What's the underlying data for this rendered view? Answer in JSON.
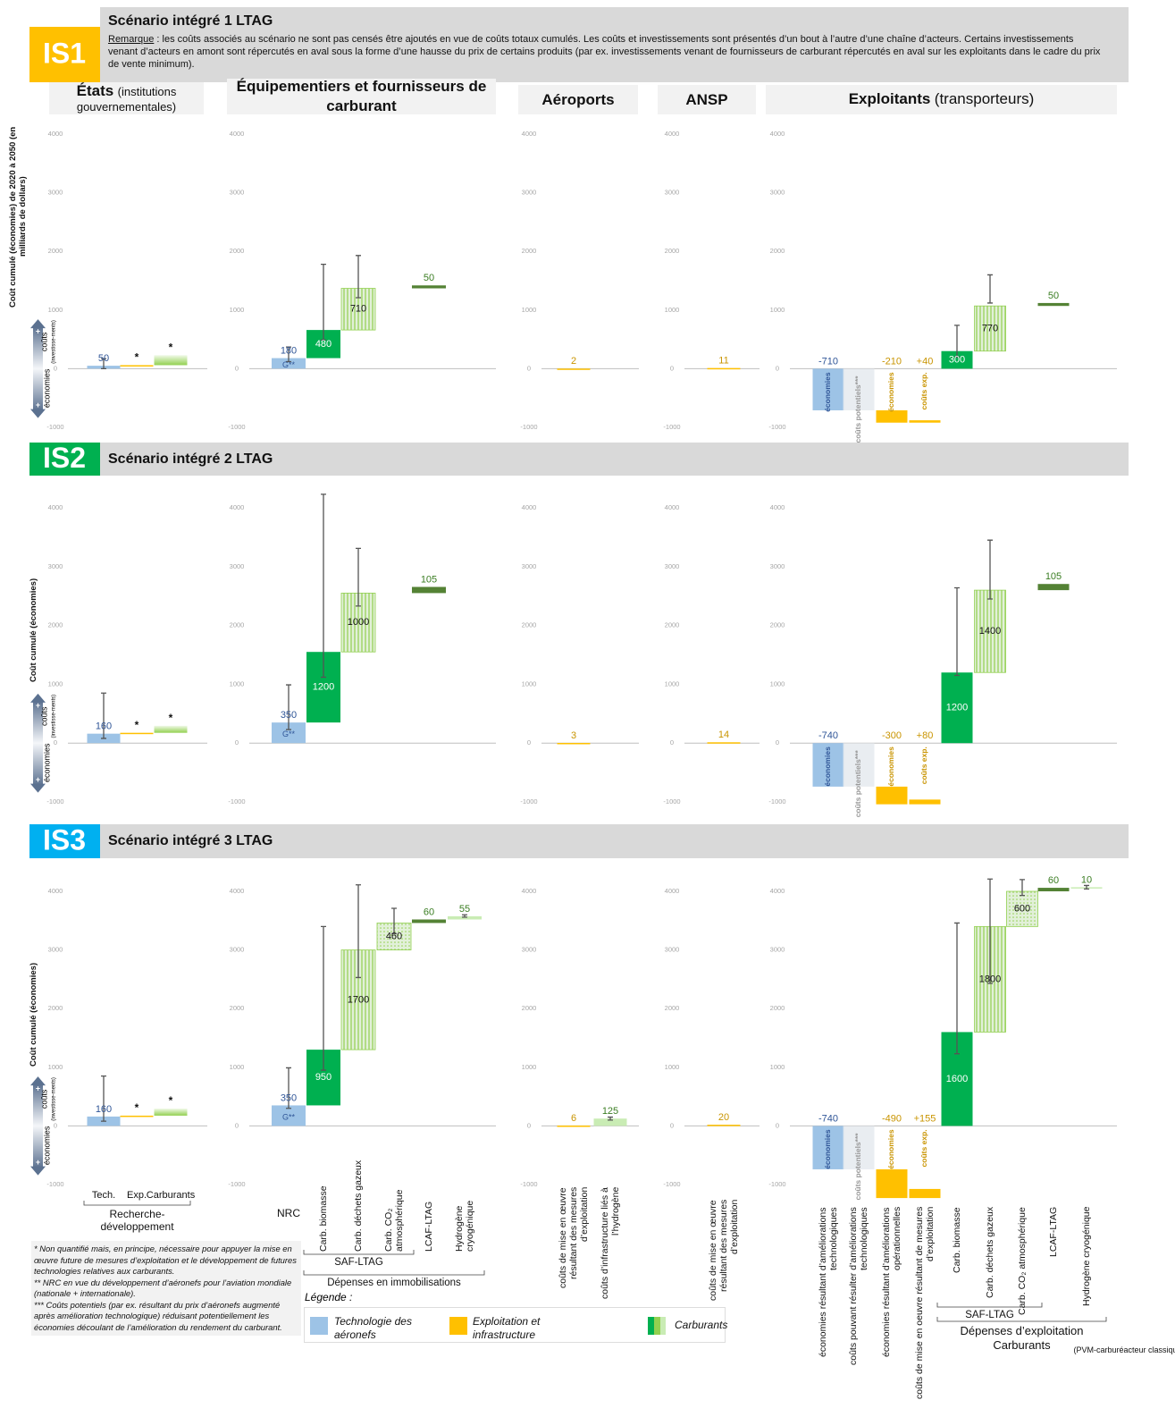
{
  "columns": [
    {
      "name": "États",
      "detail": "(institutions gouvernementales)",
      "categories": [
        "Tech.",
        "Exp.",
        "Carburants"
      ],
      "styles": [
        "tech",
        "exp",
        "fuel"
      ],
      "notes": [
        null,
        null,
        null
      ],
      "groups": [
        [
          0,
          1,
          2
        ]
      ]
    },
    {
      "name": "Équipementiers et fournisseurs de carburant",
      "categories": [
        "NRC",
        "Carb. biomasse",
        "Carb. déchets gazeux",
        "Carb. CO₂ atmosphérique",
        "LCAF-LTAG",
        "Hydrogène cryogénique"
      ],
      "styles": [
        "tech",
        "bio",
        "saf",
        "co2",
        "lcaf",
        "h2"
      ],
      "notes": [
        "G**",
        null,
        null,
        null,
        null,
        null
      ],
      "groups": [
        [
          0,
          1,
          2,
          3,
          4,
          5
        ]
      ]
    },
    {
      "name": "Aéroports",
      "categories": [
        "coûts de mise en œuvre résultant des mesures d’exploitation",
        "coûts d’infrastructure liés à l’hydrogène"
      ],
      "styles": [
        "exp",
        "h2"
      ],
      "notes": [
        null,
        null
      ],
      "groups": [
        [
          0
        ],
        [
          1
        ]
      ]
    },
    {
      "name": "ANSP",
      "categories": [
        "coûts de mise en œuvre résultant des mesures d’exploitation"
      ],
      "styles": [
        "exp"
      ],
      "notes": [
        null
      ],
      "groups": [
        [
          0
        ]
      ]
    },
    {
      "name": "Exploitants",
      "detail": "(transporteurs)",
      "categories": [
        "économies résultant d’améliorations technologiques",
        "coûts pouvant résulter d’améliorations technologiques",
        "économies résultant d’améliorations opérationnelles",
        "coûts de mise en oeuvre résultant de mesures d’exploitation",
        "Carb. biomasse",
        "Carb. déchets gazeux",
        "Carb. CO₂ atmosphérique",
        "LCAF-LTAG",
        "Hydrogène cryogénique"
      ],
      "styles": [
        "tech",
        "potential",
        "exp",
        "exp",
        "bio",
        "saf",
        "co2",
        "lcaf",
        "h2"
      ],
      "notes": [
        "économies",
        "coûts potentiels***",
        "économies",
        "coûts exp.",
        null,
        null,
        null,
        null,
        null
      ],
      "groups": [
        [
          0,
          1,
          2,
          3
        ],
        [
          4,
          5,
          6,
          7,
          8
        ]
      ]
    }
  ],
  "brackets": [
    {
      "label": "Recherche-développement",
      "column": 0,
      "from": 0,
      "to": 2
    },
    {
      "label": "SAF-LTAG",
      "column": 1,
      "from": 1,
      "to": 3
    },
    {
      "label": "Dépenses en immobilisations",
      "column": 1,
      "from": 1,
      "to": 5
    },
    {
      "label": "SAF-LTAG",
      "column": 4,
      "from": 4,
      "to": 6
    },
    {
      "label": "Dépenses d’exploitation Carburants",
      "sub": "(PVM-carburéacteur classique)",
      "column": 4,
      "from": 4,
      "to": 8
    }
  ],
  "colors": {
    "tech": "#9dc3e6",
    "exp": "#ffc000",
    "fuel": "#92d050",
    "bio": "#00b050",
    "saf": "#e2f0d9",
    "co2": "#e2f0d9",
    "lcaf": "#548235",
    "h2": "#c9ecb4",
    "potential": "#e3e8ee"
  },
  "axis_arrow": {
    "up": "coûts",
    "up_detail": "(investisse-ments)",
    "down": "économies",
    "sign": "+"
  },
  "chart_data": [
    {
      "type": "waterfall",
      "badge": "IS1",
      "badge_color": "#ffc000",
      "title": "Scénario intégré 1 LTAG",
      "remark_label": "Remarque",
      "remark": " : les coûts associés au scénario ne sont pas censés être ajoutés en vue de coûts totaux cumulés. Les coûts et investissements sont présentés d’un bout à l’autre d’une chaîne d’acteurs. Certains investissements venant d’acteurs en amont sont répercutés en aval sous la forme d’une hausse du prix de certains produits (par ex. investissements venant de fournisseurs de carburant répercutés en aval sur les exploitants dans le cadre du prix de vente minimum).",
      "ylabel": "Coût cumulé (économies) de 2020 à 2050 (en milliards de dollars)",
      "ylim": [
        -1000,
        4000
      ],
      "yticks": [
        -1000,
        0,
        1000,
        2000,
        3000,
        4000
      ],
      "panels": [
        {
          "values": [
            50,
            10,
            170
          ],
          "value_labels": [
            "50",
            "*",
            "*"
          ],
          "ranges": [
            [
              0,
              170
            ],
            null,
            null
          ]
        },
        {
          "values": [
            180,
            480,
            710,
            null,
            50,
            null
          ],
          "value_labels": [
            "180",
            "480",
            "710",
            null,
            "50",
            null
          ],
          "ranges": [
            [
              120,
              370
            ],
            [
              490,
              1780
            ],
            [
              1210,
              1930
            ],
            null,
            null,
            null
          ]
        },
        {
          "values": [
            2,
            null
          ],
          "value_labels": [
            "2",
            null
          ],
          "ranges": [
            null,
            null
          ]
        },
        {
          "values": [
            11
          ],
          "value_labels": [
            "11"
          ],
          "ranges": [
            null
          ]
        },
        {
          "values": [
            -710,
            null,
            -210,
            40,
            300,
            770,
            null,
            50,
            null
          ],
          "value_labels": [
            "-710",
            null,
            "-210",
            "+40",
            "300",
            "770",
            null,
            "50",
            null
          ],
          "ranges": [
            null,
            null,
            null,
            null,
            [
              200,
              740
            ],
            [
              1120,
              1600
            ],
            null,
            null,
            null
          ]
        }
      ]
    },
    {
      "type": "waterfall",
      "badge": "IS2",
      "badge_color": "#00b050",
      "title": "Scénario intégré 2 LTAG",
      "ylabel": "Coût cumulé (économies)",
      "ylim": [
        -1000,
        4000
      ],
      "yticks": [
        -1000,
        0,
        1000,
        2000,
        3000,
        4000
      ],
      "panels": [
        {
          "values": [
            160,
            15,
            120
          ],
          "value_labels": [
            "160",
            "*",
            "*"
          ],
          "ranges": [
            [
              80,
              850
            ],
            null,
            null
          ]
        },
        {
          "values": [
            350,
            1200,
            1000,
            null,
            105,
            null
          ],
          "value_labels": [
            "350",
            "1200",
            "1000",
            null,
            "105",
            null
          ],
          "ranges": [
            [
              230,
              990
            ],
            [
              1120,
              4230
            ],
            [
              2330,
              3310
            ],
            null,
            null,
            null
          ]
        },
        {
          "values": [
            3,
            null
          ],
          "value_labels": [
            "3",
            null
          ],
          "ranges": [
            null,
            null
          ]
        },
        {
          "values": [
            14
          ],
          "value_labels": [
            "14"
          ],
          "ranges": [
            null
          ]
        },
        {
          "values": [
            -740,
            null,
            -300,
            80,
            1200,
            1400,
            null,
            105,
            null
          ],
          "value_labels": [
            "-740",
            null,
            "-300",
            "+80",
            "1200",
            "1400",
            null,
            "105",
            null
          ],
          "ranges": [
            null,
            null,
            null,
            null,
            [
              1150,
              2640
            ],
            [
              2450,
              3450
            ],
            null,
            null,
            null
          ]
        }
      ]
    },
    {
      "type": "waterfall",
      "badge": "IS3",
      "badge_color": "#00b0f0",
      "title": "Scénario intégré 3 LTAG",
      "ylabel": "Coût cumulé (économies)",
      "ylim": [
        -1000,
        4000
      ],
      "yticks": [
        -1000,
        0,
        1000,
        2000,
        3000,
        4000
      ],
      "panels": [
        {
          "values": [
            160,
            15,
            120
          ],
          "value_labels": [
            "160",
            "*",
            "*"
          ],
          "ranges": [
            [
              80,
              850
            ],
            null,
            null
          ]
        },
        {
          "values": [
            350,
            950,
            1700,
            460,
            60,
            55
          ],
          "value_labels": [
            "350",
            "950",
            "1700",
            "460",
            "60",
            "55"
          ],
          "ranges": [
            [
              300,
              990
            ],
            [
              950,
              3400
            ],
            [
              2530,
              4110
            ],
            [
              3280,
              3710
            ],
            null,
            [
              3560,
              3600
            ]
          ]
        },
        {
          "values": [
            6,
            125
          ],
          "value_labels": [
            "6",
            "125"
          ],
          "ranges": [
            null,
            [
              100,
              150
            ]
          ]
        },
        {
          "values": [
            20
          ],
          "value_labels": [
            "20"
          ],
          "ranges": [
            null
          ]
        },
        {
          "values": [
            -740,
            null,
            -490,
            155,
            1600,
            1800,
            600,
            60,
            10
          ],
          "value_labels": [
            "-740",
            null,
            "-490",
            "+155",
            "1600",
            "1800",
            "600",
            "60",
            "10"
          ],
          "ranges": [
            null,
            null,
            null,
            null,
            [
              1230,
              3460
            ],
            [
              2430,
              4210
            ],
            [
              3930,
              4200
            ],
            null,
            [
              4040,
              4100
            ]
          ]
        }
      ]
    }
  ],
  "legend": {
    "title": "Légende :",
    "items": [
      "Technologie des aéronefs",
      "Exploitation et infrastructure",
      "Carburants"
    ]
  },
  "footnotes": [
    "* Non quantifié mais, en principe, nécessaire pour appuyer la mise en œuvre future de mesures d’exploitation et le développement de futures technologies relatives aux carburants.",
    "** NRC en vue du développement d’aéronefs pour l’aviation mondiale (nationale + internationale).",
    "*** Coûts potentiels (par ex. résultant du prix d’aéronefs augmenté après amélioration technologique) réduisant potentiellement les économies découlant de l’amélioration du rendement du carburant."
  ]
}
